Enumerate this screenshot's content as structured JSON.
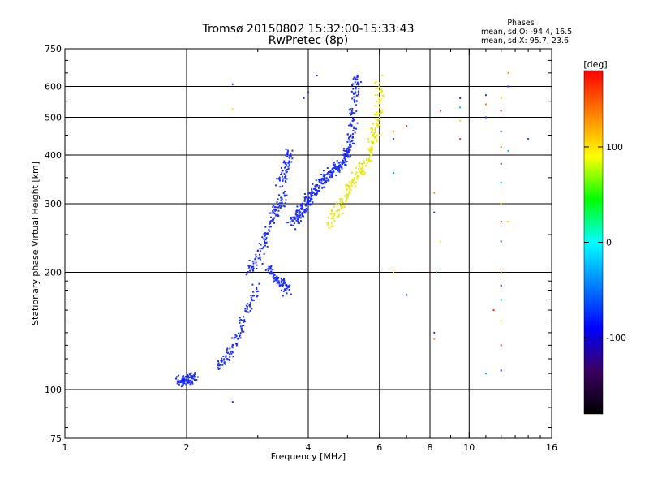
{
  "chart_data": {
    "type": "scatter",
    "title": "Tromsø 20150802 15:32:00-15:33:43",
    "subtitle": "RwPretec (8p)",
    "xlabel": "Frequency [MHz]",
    "ylabel": "Stationary phase Virtual Height [km]",
    "x_scale": "log",
    "y_scale": "log",
    "xlim": [
      1,
      16
    ],
    "ylim": [
      75,
      750
    ],
    "x_ticks": [
      1,
      2,
      4,
      6,
      8,
      10,
      16
    ],
    "y_ticks": [
      75,
      100,
      200,
      300,
      400,
      500,
      600,
      750
    ],
    "x_grid_lines": [
      2,
      4,
      6,
      8,
      10
    ],
    "y_grid_lines": [
      100,
      200,
      300,
      400,
      500,
      600
    ],
    "grid": true,
    "stats": {
      "header": "Phases",
      "line_o": "mean, sd,O: -94.4, 16.5",
      "line_x": "mean, sd,X:  95.7, 23.6"
    },
    "colorbar": {
      "label": "[deg]",
      "min": -180,
      "max": 180,
      "ticks": [
        -100,
        0,
        100
      ],
      "colors": [
        "#000000",
        "#3b0060",
        "#0000ff",
        "#0080ff",
        "#00ffff",
        "#00ff00",
        "#ffff00",
        "#ff8000",
        "#ff0000"
      ]
    },
    "series": [
      {
        "name": "O",
        "phase_deg": -94.4,
        "color": "#1a2bff",
        "traces": [
          [
            [
              1.92,
              104
            ],
            [
              1.95,
              106
            ],
            [
              2.0,
              107
            ],
            [
              2.05,
              106
            ],
            [
              2.1,
              108
            ]
          ],
          [
            [
              2.4,
              115
            ],
            [
              2.5,
              120
            ],
            [
              2.6,
              128
            ],
            [
              2.7,
              140
            ],
            [
              2.8,
              155
            ],
            [
              2.9,
              170
            ],
            [
              3.0,
              185
            ]
          ],
          [
            [
              2.85,
              200
            ],
            [
              3.0,
              215
            ],
            [
              3.1,
              240
            ],
            [
              3.2,
              260
            ],
            [
              3.3,
              285
            ],
            [
              3.4,
              300
            ],
            [
              3.5,
              320
            ]
          ],
          [
            [
              3.2,
              205
            ],
            [
              3.3,
              195
            ],
            [
              3.4,
              190
            ],
            [
              3.5,
              185
            ],
            [
              3.55,
              178
            ]
          ],
          [
            [
              3.4,
              340
            ],
            [
              3.5,
              360
            ],
            [
              3.55,
              385
            ],
            [
              3.6,
              410
            ]
          ],
          [
            [
              3.7,
              265
            ],
            [
              3.85,
              280
            ],
            [
              4.0,
              300
            ],
            [
              4.2,
              330
            ],
            [
              4.4,
              355
            ],
            [
              4.6,
              365
            ],
            [
              4.8,
              375
            ],
            [
              5.0,
              400
            ],
            [
              5.1,
              430
            ],
            [
              5.15,
              480
            ],
            [
              5.2,
              540
            ],
            [
              5.25,
              600
            ],
            [
              5.3,
              640
            ]
          ],
          [
            [
              3.6,
              270
            ],
            [
              3.8,
              285
            ],
            [
              4.0,
              310
            ],
            [
              4.3,
              340
            ],
            [
              4.6,
              360
            ],
            [
              4.9,
              390
            ],
            [
              5.05,
              420
            ]
          ]
        ],
        "scattered": [
          [
            2.6,
            608
          ],
          [
            3.9,
            560
          ],
          [
            4.0,
            580
          ],
          [
            4.2,
            640
          ],
          [
            2.6,
            93
          ]
        ]
      },
      {
        "name": "X",
        "phase_deg": 95.7,
        "color": "#e8e800",
        "traces": [
          [
            [
              4.5,
              265
            ],
            [
              4.7,
              285
            ],
            [
              4.9,
              310
            ],
            [
              5.1,
              335
            ],
            [
              5.3,
              355
            ],
            [
              5.5,
              375
            ],
            [
              5.7,
              405
            ],
            [
              5.8,
              440
            ],
            [
              5.9,
              480
            ],
            [
              6.0,
              540
            ],
            [
              6.0,
              610
            ]
          ]
        ],
        "scattered": [
          [
            2.6,
            525
          ],
          [
            6.1,
            640
          ]
        ]
      }
    ],
    "sparse_points": [
      [
        6.5,
        460
      ],
      [
        6.5,
        440
      ],
      [
        6.5,
        360
      ],
      [
        6.5,
        200
      ],
      [
        7.0,
        475
      ],
      [
        7.0,
        175
      ],
      [
        8.2,
        320
      ],
      [
        8.2,
        285
      ],
      [
        8.3,
        200
      ],
      [
        8.5,
        240
      ],
      [
        8.5,
        520
      ],
      [
        8.2,
        140
      ],
      [
        8.2,
        135
      ],
      [
        9.5,
        560
      ],
      [
        9.5,
        530
      ],
      [
        9.5,
        490
      ],
      [
        9.5,
        440
      ],
      [
        11.0,
        570
      ],
      [
        11.0,
        540
      ],
      [
        11.0,
        500
      ],
      [
        11.0,
        110
      ],
      [
        12.0,
        560
      ],
      [
        12.0,
        520
      ],
      [
        12.0,
        460
      ],
      [
        12.0,
        420
      ],
      [
        12.0,
        380
      ],
      [
        12.0,
        340
      ],
      [
        12.0,
        300
      ],
      [
        12.0,
        270
      ],
      [
        12.0,
        240
      ],
      [
        12.0,
        200
      ],
      [
        12.0,
        185
      ],
      [
        12.0,
        170
      ],
      [
        12.0,
        150
      ],
      [
        12.0,
        130
      ],
      [
        12.0,
        112
      ],
      [
        12.5,
        650
      ],
      [
        12.5,
        600
      ],
      [
        12.5,
        410
      ],
      [
        12.5,
        270
      ],
      [
        11.5,
        160
      ],
      [
        14.0,
        440
      ]
    ]
  }
}
